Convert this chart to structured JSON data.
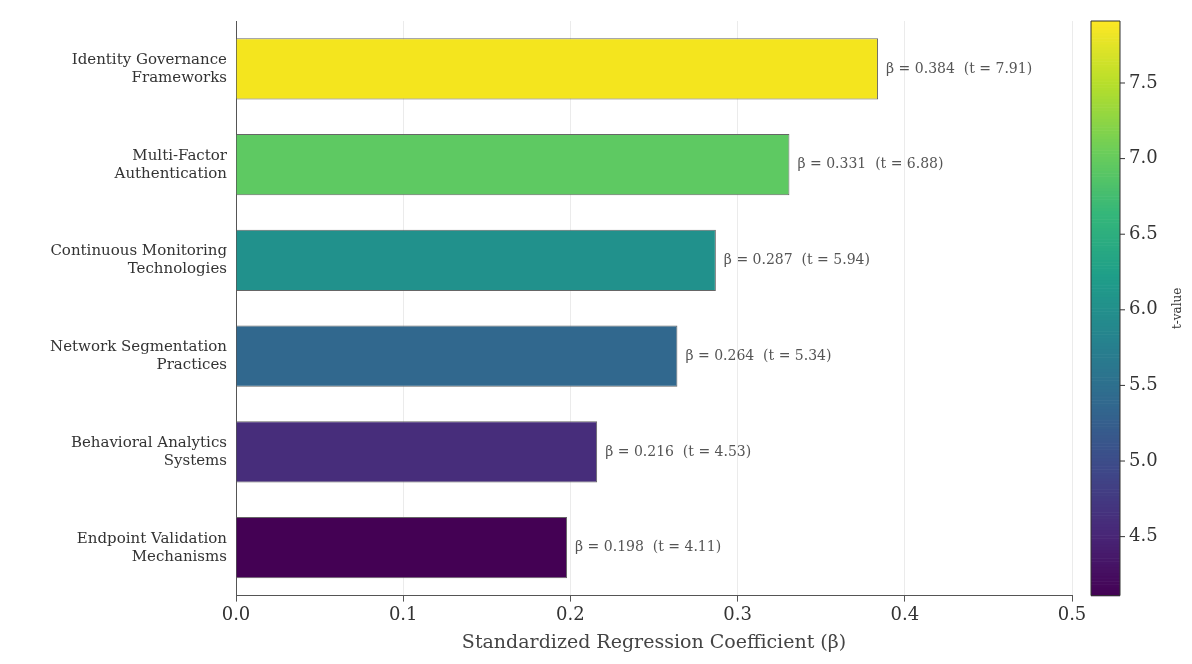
{
  "chart_data": {
    "type": "bar",
    "orientation": "horizontal",
    "categories": [
      "Identity Governance Frameworks",
      "Multi-Factor Authentication",
      "Continuous Monitoring Technologies",
      "Network Segmentation Practices",
      "Behavioral Analytics Systems",
      "Endpoint Validation Mechanisms"
    ],
    "values": [
      0.384,
      0.331,
      0.287,
      0.264,
      0.216,
      0.198
    ],
    "colors": [
      "#f4e51e",
      "#5ec962",
      "#21918c",
      "#31688e",
      "#472d7b",
      "#440154"
    ],
    "value_labels": [
      "β = 0.384  (t = 7.91)",
      "β = 0.331  (t = 6.88)",
      "β = 0.287  (t = 5.94)",
      "β = 0.264  (t = 5.34)",
      "β = 0.216  (t = 4.53)",
      "β = 0.198  (t = 4.11)"
    ],
    "xlabel": "Standardized Regression Coefficient (β)",
    "xlim": [
      0,
      0.5
    ],
    "xticks": [
      {
        "value": 0,
        "label": "0.0"
      },
      0.1,
      0.2,
      0.3,
      0.4,
      0.5
    ],
    "grid": "x",
    "clabel": "t-value",
    "clim": [
      4.11,
      7.91
    ],
    "cticks": [
      4.5,
      {
        "value": 5,
        "label": "5.0"
      },
      5.5,
      {
        "value": 6,
        "label": "6.0"
      },
      6.5,
      {
        "value": 7,
        "label": "7.0"
      },
      7.5
    ]
  }
}
